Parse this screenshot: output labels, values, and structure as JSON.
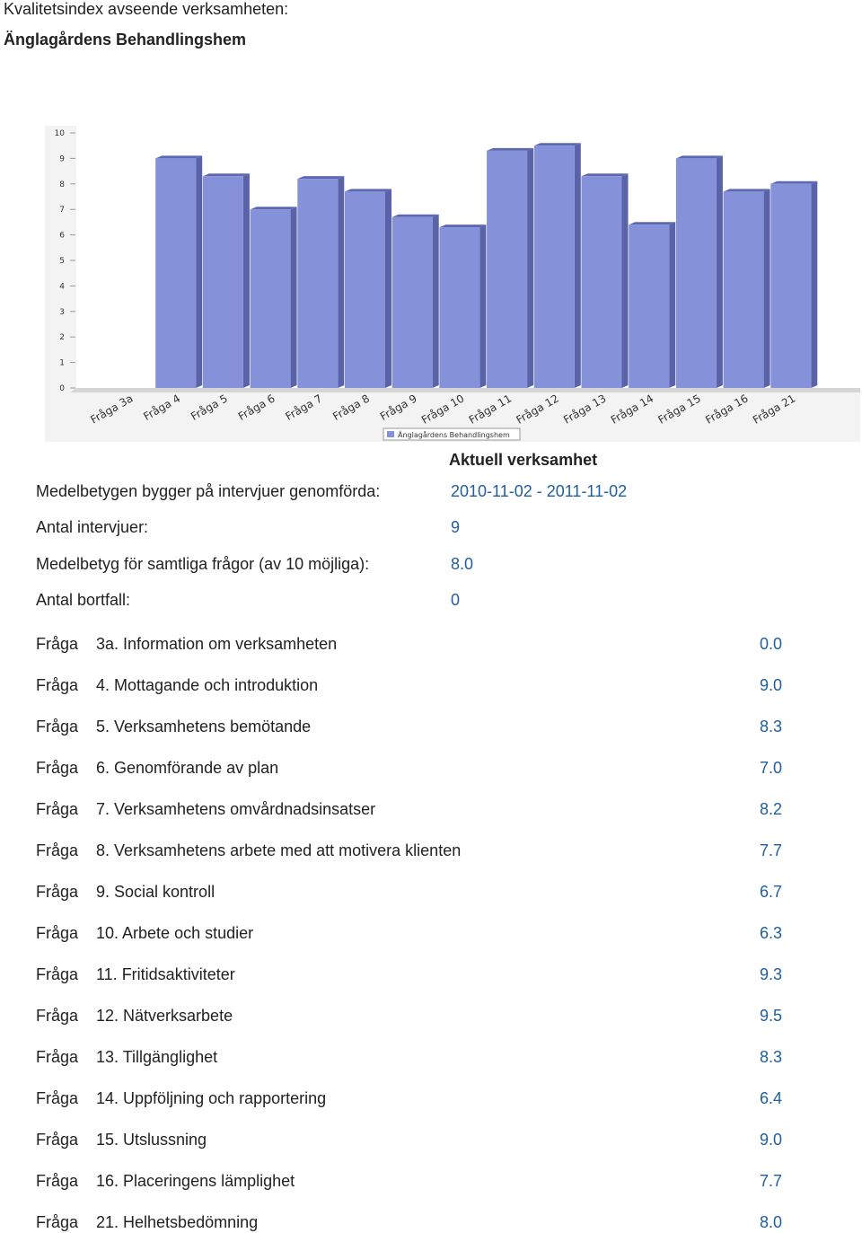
{
  "header": {
    "title": "Kvalitetsindex avseende verksamheten:",
    "unit": "Änglagårdens Behandlingshem"
  },
  "chart_data": {
    "type": "bar",
    "categories": [
      "Fråga 3a",
      "Fråga 4",
      "Fråga 5",
      "Fråga 6",
      "Fråga 7",
      "Fråga 8",
      "Fråga 9",
      "Fråga 10",
      "Fråga 11",
      "Fråga 12",
      "Fråga 13",
      "Fråga 14",
      "Fråga 15",
      "Fråga 16",
      "Fråga 21"
    ],
    "series": [
      {
        "name": "Änglagårdens Behandlingshem",
        "color": "#8591d9",
        "values": [
          0,
          9,
          8.3,
          7,
          8.2,
          7.7,
          6.7,
          6.3,
          9.3,
          9.5,
          8.3,
          6.4,
          9,
          7.7,
          8
        ]
      }
    ],
    "ylim": [
      0,
      10
    ],
    "yticks": [
      0,
      1,
      2,
      3,
      4,
      5,
      6,
      7,
      8,
      9,
      10
    ],
    "grid": false
  },
  "summary": {
    "column_header": "Aktuell verksamhet",
    "rows": [
      [
        "Medelbetygen bygger på intervjuer genomförda:",
        "2010-11-02 - 2011-11-02"
      ],
      [
        "Antal intervjuer:",
        "9"
      ],
      [
        "Medelbetyg för samtliga frågor (av 10 möjliga):",
        "8.0"
      ],
      [
        "Antal bortfall:",
        "0"
      ]
    ]
  },
  "questions": [
    {
      "prefix": "Fråga",
      "label": "3a. Information om verksamheten",
      "value": "0.0"
    },
    {
      "prefix": "Fråga",
      "label": "4. Mottagande och introduktion",
      "value": "9.0"
    },
    {
      "prefix": "Fråga",
      "label": "5. Verksamhetens bemötande",
      "value": "8.3"
    },
    {
      "prefix": "Fråga",
      "label": "6. Genomförande av plan",
      "value": "7.0"
    },
    {
      "prefix": "Fråga",
      "label": "7. Verksamhetens omvårdnadsinsatser",
      "value": "8.2"
    },
    {
      "prefix": "Fråga",
      "label": "8. Verksamhetens arbete med att motivera klienten",
      "value": "7.7"
    },
    {
      "prefix": "Fråga",
      "label": "9. Social kontroll",
      "value": "6.7"
    },
    {
      "prefix": "Fråga",
      "label": "10. Arbete och studier",
      "value": "6.3"
    },
    {
      "prefix": "Fråga",
      "label": "11. Fritidsaktiviteter",
      "value": "9.3"
    },
    {
      "prefix": "Fråga",
      "label": "12. Nätverksarbete",
      "value": "9.5"
    },
    {
      "prefix": "Fråga",
      "label": "13. Tillgänglighet",
      "value": "8.3"
    },
    {
      "prefix": "Fråga",
      "label": "14. Uppföljning och rapportering",
      "value": "6.4"
    },
    {
      "prefix": "Fråga",
      "label": "15. Utslussning",
      "value": "9.0"
    },
    {
      "prefix": "Fråga",
      "label": "16. Placeringens lämplighet",
      "value": "7.7"
    },
    {
      "prefix": "Fråga",
      "label": "21. Helhetsbedömning",
      "value": "8.0"
    }
  ]
}
